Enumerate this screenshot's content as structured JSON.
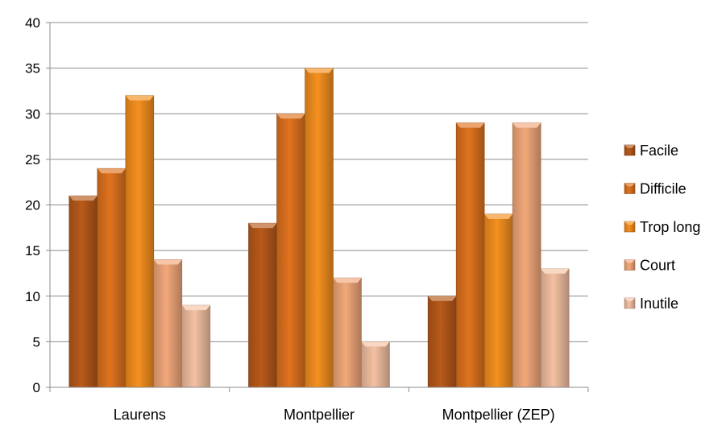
{
  "chart_data": {
    "type": "bar",
    "title": "",
    "xlabel": "",
    "ylabel": "",
    "ylim": [
      0,
      40
    ],
    "yticks": [
      0,
      5,
      10,
      15,
      20,
      25,
      30,
      35,
      40
    ],
    "grid": true,
    "legend_position": "right",
    "categories": [
      "Laurens",
      "Montpellier",
      "Montpellier (ZEP)"
    ],
    "series": [
      {
        "name": "Facile",
        "color": "#B85A1A",
        "values": [
          21,
          18,
          10
        ]
      },
      {
        "name": "Difficile",
        "color": "#E0731F",
        "values": [
          24,
          30,
          29
        ]
      },
      {
        "name": "Trop long",
        "color": "#F5901F",
        "values": [
          32,
          35,
          19
        ]
      },
      {
        "name": "Court",
        "color": "#F2A87A",
        "values": [
          14,
          12,
          29
        ]
      },
      {
        "name": "Inutile",
        "color": "#F4C1A3",
        "values": [
          9,
          5,
          13
        ]
      }
    ]
  }
}
